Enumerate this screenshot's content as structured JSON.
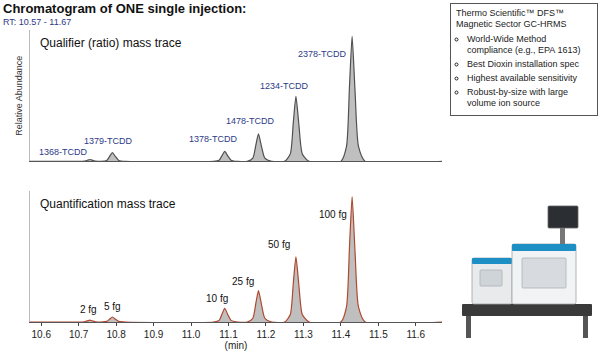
{
  "header": {
    "title": "Chromatogram of ONE single injection:",
    "subtitle": "RT: 10.57 - 11.67"
  },
  "info_box": {
    "title": "Thermo Scientific™ DFS™ Magnetic Sector GC-HRMS",
    "items": [
      "World-Wide Method compliance (e.g., EPA 1613)",
      "Best Dioxin installation spec",
      "Highest available sensitivity",
      "Robust-by-size with large volume ion source"
    ]
  },
  "chart_data": [
    {
      "type": "line",
      "title": "Qualifier (ratio) mass trace",
      "ylabel": "Relative Abundance",
      "color": "#505050",
      "grid": false,
      "tick_labels": false,
      "xlim": [
        10.57,
        11.67
      ],
      "ylim": [
        0,
        105
      ],
      "x": [
        10.57,
        10.7,
        10.715,
        10.723,
        10.73,
        10.738,
        10.745,
        10.76,
        10.775,
        10.783,
        10.79,
        10.798,
        10.807,
        10.825,
        11.06,
        11.075,
        11.083,
        11.09,
        11.098,
        11.107,
        11.125,
        11.15,
        11.165,
        11.173,
        11.18,
        11.188,
        11.197,
        11.215,
        11.25,
        11.265,
        11.273,
        11.28,
        11.288,
        11.297,
        11.315,
        11.4,
        11.415,
        11.423,
        11.43,
        11.438,
        11.447,
        11.465,
        11.67
      ],
      "values": [
        0,
        0,
        0.2,
        0.9,
        1.5,
        0.8,
        0.2,
        0,
        0.8,
        4.2,
        7,
        3.9,
        0.8,
        0,
        0,
        1,
        4.8,
        8,
        4.4,
        1,
        0,
        0,
        2.6,
        13,
        22,
        12,
        2.6,
        0,
        0,
        6,
        31,
        52,
        29,
        6,
        0,
        0,
        12,
        60,
        100,
        55,
        12,
        0,
        0
      ],
      "annotations": [
        {
          "text": "1368-TCDD",
          "x": 10.66,
          "y": 2
        },
        {
          "text": "1379-TCDD",
          "x": 10.78,
          "y": 11
        },
        {
          "text": "1378-TCDD",
          "x": 11.06,
          "y": 12
        },
        {
          "text": "1478-TCDD",
          "x": 11.16,
          "y": 27
        },
        {
          "text": "1234-TCDD",
          "x": 11.25,
          "y": 55
        },
        {
          "text": "2378-TCDD",
          "x": 11.35,
          "y": 80
        }
      ]
    },
    {
      "type": "line",
      "title": "Quantification mass trace",
      "xlabel": "(min)",
      "color": "#b0482f",
      "grid": false,
      "tick_labels": "x",
      "xlim": [
        10.57,
        11.67
      ],
      "ylim": [
        0,
        105
      ],
      "xticks": [
        10.6,
        10.7,
        10.8,
        10.9,
        {
          "value": 11,
          "label": "11.0"
        },
        11.1,
        11.2,
        11.3,
        11.4,
        11.5,
        11.6
      ],
      "x": [
        10.57,
        10.7,
        10.715,
        10.723,
        10.73,
        10.738,
        10.745,
        10.76,
        10.775,
        10.783,
        10.79,
        10.798,
        10.807,
        10.825,
        11.06,
        11.075,
        11.083,
        11.09,
        11.098,
        11.107,
        11.125,
        11.15,
        11.165,
        11.173,
        11.18,
        11.188,
        11.197,
        11.215,
        11.25,
        11.265,
        11.273,
        11.28,
        11.288,
        11.297,
        11.315,
        11.4,
        11.415,
        11.423,
        11.43,
        11.438,
        11.447,
        11.465,
        11.67
      ],
      "values": [
        0,
        0,
        0.2,
        0.9,
        1.5,
        0.8,
        0.2,
        0,
        0.5,
        2.4,
        4,
        2.2,
        0.5,
        0,
        0,
        1.3,
        6.6,
        11,
        6,
        1.3,
        0,
        0,
        3,
        15,
        25,
        14,
        3,
        0,
        0,
        6,
        31,
        52,
        29,
        6,
        0,
        0,
        12,
        60,
        100,
        55,
        12,
        0,
        0
      ],
      "annotations": [
        {
          "text": "2 fg",
          "x": 10.725,
          "y": 4
        },
        {
          "text": "5 fg",
          "x": 10.79,
          "y": 6
        },
        {
          "text": "10 fg",
          "x": 11.07,
          "y": 13
        },
        {
          "text": "25 fg",
          "x": 11.14,
          "y": 26
        },
        {
          "text": "50 fg",
          "x": 11.235,
          "y": 56
        },
        {
          "text": "100 fg",
          "x": 11.38,
          "y": 80
        }
      ]
    }
  ]
}
